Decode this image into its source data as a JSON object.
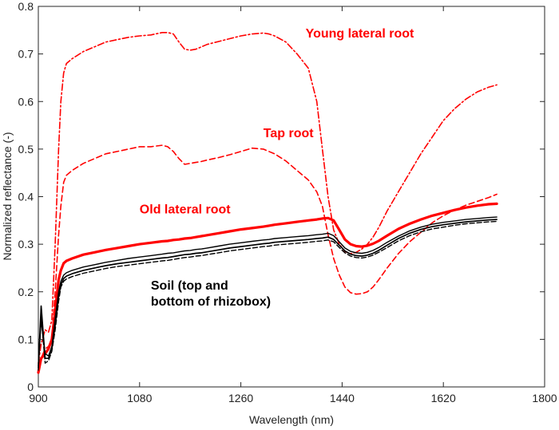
{
  "chart_data": {
    "type": "line",
    "title": "",
    "xlabel": "Wavelength (nm)",
    "ylabel": "Normalized reflectance (-)",
    "xlim": [
      900,
      1800
    ],
    "ylim": [
      0,
      0.8
    ],
    "x_ticks": [
      900,
      1080,
      1260,
      1440,
      1620,
      1800
    ],
    "y_ticks": [
      0,
      0.1,
      0.2,
      0.3,
      0.4,
      0.5,
      0.6,
      0.7,
      0.8
    ],
    "grid": false,
    "legend": "none",
    "annotations": [
      {
        "text": "Young lateral root",
        "x": 1375,
        "y": 0.735,
        "color": "#ff0000",
        "lines": [
          "Young lateral root"
        ]
      },
      {
        "text": "Tap root",
        "x": 1300,
        "y": 0.525,
        "color": "#ff0000",
        "lines": [
          "Tap root"
        ]
      },
      {
        "text": "Old lateral root",
        "x": 1080,
        "y": 0.365,
        "color": "#ff0000",
        "lines": [
          "Old lateral root"
        ]
      },
      {
        "text": "Soil (top and bottom of rhizobox)",
        "x": 1100,
        "y": 0.205,
        "color": "#000000",
        "lines": [
          "Soil (top and",
          "bottom of rhizobox)"
        ]
      }
    ],
    "series": [
      {
        "color": "#ff0000",
        "dash": "8,3,2,3",
        "width": 1.6,
        "x": [
          900,
          905,
          912,
          918,
          924,
          930,
          936,
          940,
          945,
          950,
          960,
          980,
          1000,
          1020,
          1040,
          1060,
          1080,
          1100,
          1120,
          1130,
          1140,
          1150,
          1160,
          1170,
          1180,
          1190,
          1200,
          1220,
          1240,
          1260,
          1280,
          1300,
          1310,
          1320,
          1340,
          1360,
          1380,
          1395,
          1405,
          1415,
          1425,
          1435,
          1445,
          1455,
          1465,
          1475,
          1485,
          1495,
          1505,
          1520,
          1540,
          1560,
          1580,
          1600,
          1620,
          1640,
          1660,
          1680,
          1700,
          1715
        ],
        "y": [
          0.05,
          0.09,
          0.12,
          0.115,
          0.14,
          0.3,
          0.5,
          0.6,
          0.66,
          0.68,
          0.69,
          0.705,
          0.715,
          0.725,
          0.73,
          0.735,
          0.738,
          0.74,
          0.745,
          0.745,
          0.742,
          0.725,
          0.71,
          0.708,
          0.71,
          0.715,
          0.72,
          0.726,
          0.732,
          0.738,
          0.742,
          0.744,
          0.742,
          0.738,
          0.725,
          0.7,
          0.67,
          0.6,
          0.5,
          0.4,
          0.33,
          0.3,
          0.285,
          0.28,
          0.283,
          0.29,
          0.3,
          0.315,
          0.335,
          0.37,
          0.41,
          0.45,
          0.49,
          0.525,
          0.56,
          0.585,
          0.605,
          0.62,
          0.63,
          0.635
        ]
      },
      {
        "color": "#ff0000",
        "dash": "7,4",
        "width": 1.6,
        "x": [
          900,
          905,
          912,
          918,
          924,
          930,
          936,
          940,
          945,
          950,
          960,
          980,
          1000,
          1020,
          1040,
          1060,
          1080,
          1100,
          1120,
          1130,
          1140,
          1150,
          1160,
          1170,
          1180,
          1190,
          1200,
          1220,
          1240,
          1260,
          1280,
          1300,
          1310,
          1320,
          1340,
          1360,
          1380,
          1395,
          1405,
          1415,
          1425,
          1435,
          1445,
          1455,
          1465,
          1475,
          1485,
          1495,
          1505,
          1520,
          1540,
          1560,
          1580,
          1600,
          1620,
          1640,
          1660,
          1680,
          1700,
          1715
        ],
        "y": [
          0.03,
          0.06,
          0.08,
          0.085,
          0.1,
          0.2,
          0.32,
          0.38,
          0.43,
          0.445,
          0.455,
          0.47,
          0.48,
          0.49,
          0.495,
          0.5,
          0.505,
          0.505,
          0.508,
          0.505,
          0.495,
          0.48,
          0.468,
          0.47,
          0.472,
          0.474,
          0.477,
          0.482,
          0.488,
          0.495,
          0.502,
          0.5,
          0.495,
          0.49,
          0.475,
          0.455,
          0.435,
          0.41,
          0.38,
          0.32,
          0.27,
          0.235,
          0.21,
          0.198,
          0.195,
          0.196,
          0.2,
          0.21,
          0.225,
          0.25,
          0.28,
          0.305,
          0.325,
          0.345,
          0.36,
          0.372,
          0.382,
          0.39,
          0.398,
          0.405
        ]
      },
      {
        "color": "#ff0000",
        "dash": "",
        "width": 3.2,
        "x": [
          900,
          905,
          912,
          918,
          924,
          930,
          936,
          940,
          945,
          950,
          960,
          980,
          1000,
          1020,
          1040,
          1060,
          1080,
          1100,
          1120,
          1130,
          1140,
          1150,
          1160,
          1170,
          1180,
          1190,
          1200,
          1220,
          1240,
          1260,
          1280,
          1300,
          1310,
          1320,
          1340,
          1360,
          1380,
          1395,
          1405,
          1415,
          1425,
          1435,
          1445,
          1455,
          1465,
          1475,
          1485,
          1495,
          1505,
          1520,
          1540,
          1560,
          1580,
          1600,
          1620,
          1640,
          1660,
          1680,
          1700,
          1715
        ],
        "y": [
          0.03,
          0.06,
          0.07,
          0.08,
          0.1,
          0.16,
          0.225,
          0.245,
          0.26,
          0.265,
          0.27,
          0.278,
          0.283,
          0.288,
          0.292,
          0.296,
          0.3,
          0.303,
          0.306,
          0.307,
          0.309,
          0.31,
          0.312,
          0.313,
          0.315,
          0.317,
          0.319,
          0.323,
          0.327,
          0.331,
          0.334,
          0.337,
          0.339,
          0.341,
          0.344,
          0.347,
          0.35,
          0.352,
          0.354,
          0.355,
          0.35,
          0.33,
          0.31,
          0.3,
          0.296,
          0.295,
          0.297,
          0.301,
          0.307,
          0.318,
          0.332,
          0.343,
          0.352,
          0.36,
          0.366,
          0.372,
          0.377,
          0.381,
          0.384,
          0.385
        ]
      },
      {
        "color": "#000000",
        "dash": "",
        "width": 1.7,
        "x": [
          900,
          905,
          912,
          918,
          924,
          930,
          936,
          940,
          945,
          950,
          960,
          980,
          1000,
          1020,
          1040,
          1060,
          1080,
          1100,
          1120,
          1130,
          1140,
          1150,
          1160,
          1170,
          1180,
          1190,
          1200,
          1220,
          1240,
          1260,
          1280,
          1300,
          1310,
          1320,
          1340,
          1360,
          1380,
          1395,
          1405,
          1415,
          1425,
          1435,
          1445,
          1455,
          1465,
          1475,
          1485,
          1495,
          1505,
          1520,
          1540,
          1560,
          1580,
          1600,
          1620,
          1640,
          1660,
          1680,
          1700,
          1715
        ],
        "y": [
          0.04,
          0.17,
          0.06,
          0.06,
          0.08,
          0.13,
          0.19,
          0.215,
          0.228,
          0.233,
          0.238,
          0.245,
          0.25,
          0.255,
          0.259,
          0.262,
          0.265,
          0.268,
          0.271,
          0.272,
          0.274,
          0.276,
          0.278,
          0.279,
          0.281,
          0.282,
          0.284,
          0.288,
          0.292,
          0.295,
          0.298,
          0.301,
          0.302,
          0.304,
          0.306,
          0.308,
          0.31,
          0.312,
          0.313,
          0.315,
          0.31,
          0.298,
          0.286,
          0.279,
          0.276,
          0.275,
          0.277,
          0.281,
          0.287,
          0.298,
          0.312,
          0.323,
          0.331,
          0.337,
          0.341,
          0.344,
          0.347,
          0.349,
          0.351,
          0.352
        ]
      },
      {
        "color": "#000000",
        "dash": "",
        "width": 1.4,
        "x": [
          900,
          905,
          912,
          918,
          924,
          930,
          936,
          940,
          945,
          950,
          960,
          980,
          1000,
          1020,
          1040,
          1060,
          1080,
          1100,
          1120,
          1130,
          1140,
          1150,
          1160,
          1170,
          1180,
          1190,
          1200,
          1220,
          1240,
          1260,
          1280,
          1300,
          1310,
          1320,
          1340,
          1360,
          1380,
          1395,
          1405,
          1415,
          1425,
          1435,
          1445,
          1455,
          1465,
          1475,
          1485,
          1495,
          1505,
          1520,
          1540,
          1560,
          1580,
          1600,
          1620,
          1640,
          1660,
          1680,
          1700,
          1715
        ],
        "y": [
          0.045,
          0.14,
          0.07,
          0.065,
          0.085,
          0.145,
          0.2,
          0.222,
          0.235,
          0.24,
          0.245,
          0.252,
          0.257,
          0.262,
          0.266,
          0.27,
          0.273,
          0.276,
          0.279,
          0.281,
          0.282,
          0.284,
          0.286,
          0.287,
          0.289,
          0.29,
          0.292,
          0.296,
          0.3,
          0.303,
          0.306,
          0.309,
          0.31,
          0.312,
          0.314,
          0.316,
          0.318,
          0.32,
          0.321,
          0.323,
          0.318,
          0.305,
          0.292,
          0.285,
          0.282,
          0.281,
          0.283,
          0.287,
          0.293,
          0.304,
          0.317,
          0.328,
          0.336,
          0.342,
          0.346,
          0.349,
          0.352,
          0.354,
          0.356,
          0.357
        ]
      },
      {
        "color": "#000000",
        "dash": "6,3",
        "width": 1.4,
        "x": [
          900,
          905,
          912,
          918,
          924,
          930,
          936,
          940,
          945,
          950,
          960,
          980,
          1000,
          1020,
          1040,
          1060,
          1080,
          1100,
          1120,
          1130,
          1140,
          1150,
          1160,
          1170,
          1180,
          1190,
          1200,
          1220,
          1240,
          1260,
          1280,
          1300,
          1310,
          1320,
          1340,
          1360,
          1380,
          1395,
          1405,
          1415,
          1425,
          1435,
          1445,
          1455,
          1465,
          1475,
          1485,
          1495,
          1505,
          1520,
          1540,
          1560,
          1580,
          1600,
          1620,
          1640,
          1660,
          1680,
          1700,
          1715
        ],
        "y": [
          0.035,
          0.15,
          0.05,
          0.055,
          0.075,
          0.12,
          0.18,
          0.21,
          0.222,
          0.227,
          0.232,
          0.239,
          0.244,
          0.249,
          0.253,
          0.256,
          0.259,
          0.262,
          0.265,
          0.266,
          0.268,
          0.27,
          0.272,
          0.273,
          0.275,
          0.276,
          0.278,
          0.282,
          0.286,
          0.289,
          0.292,
          0.295,
          0.296,
          0.298,
          0.3,
          0.302,
          0.304,
          0.306,
          0.307,
          0.309,
          0.305,
          0.293,
          0.282,
          0.275,
          0.272,
          0.271,
          0.273,
          0.277,
          0.283,
          0.293,
          0.307,
          0.318,
          0.326,
          0.332,
          0.336,
          0.34,
          0.343,
          0.345,
          0.347,
          0.348
        ]
      }
    ]
  }
}
